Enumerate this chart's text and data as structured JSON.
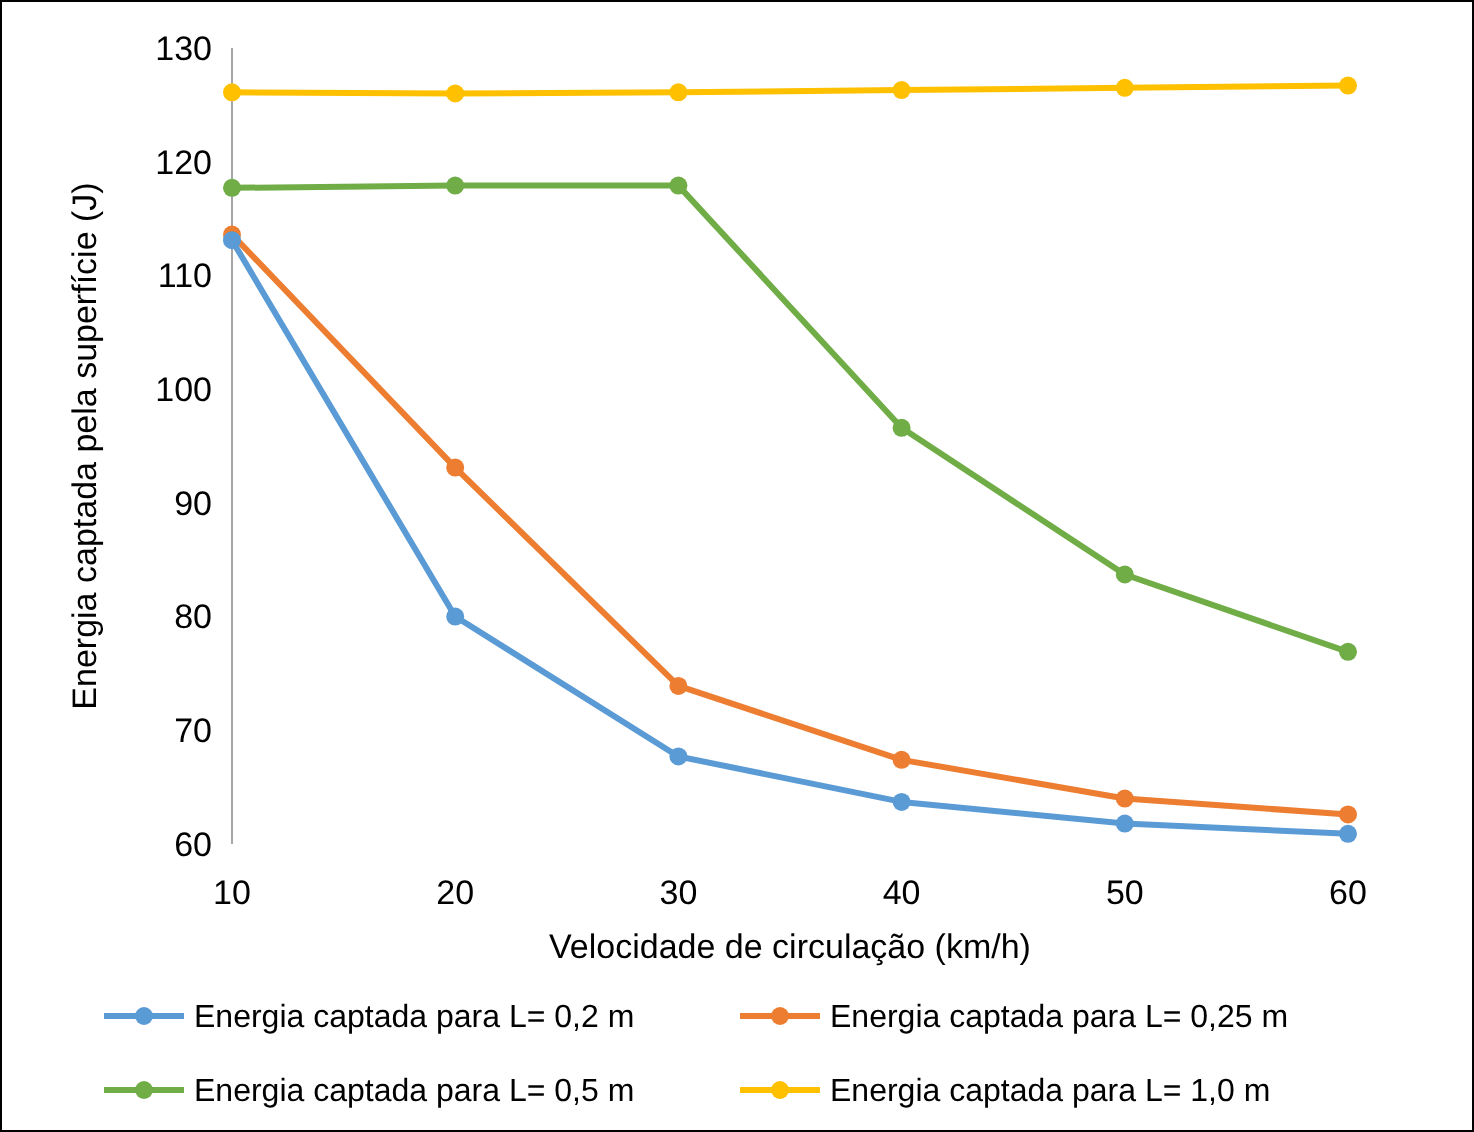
{
  "chart_data": {
    "type": "line",
    "xlabel": "Velocidade de circulação (km/h)",
    "ylabel": "Energia captada pela superfície (J)",
    "x": [
      10,
      20,
      30,
      40,
      50,
      60
    ],
    "xlim": [
      10,
      60
    ],
    "xticks": [
      10,
      20,
      30,
      40,
      50,
      60
    ],
    "ylim": [
      60,
      130
    ],
    "yticks": [
      60,
      70,
      80,
      90,
      100,
      110,
      120,
      130
    ],
    "grid": false,
    "legend": "bottom",
    "marker": "circle",
    "line_style": "solid",
    "series": [
      {
        "name": "Energia captada para L= 0,2 m",
        "color": "#5b9bd5",
        "values": [
          113.1,
          80,
          67.7,
          63.7,
          61.8,
          60.9
        ]
      },
      {
        "name": "Energia captada para L= 0,25 m",
        "color": "#ed7d31",
        "values": [
          113.6,
          93.1,
          73.9,
          67.4,
          64,
          62.6
        ]
      },
      {
        "name": "Energia captada para L= 0,5 m",
        "color": "#70ad47",
        "values": [
          117.7,
          117.9,
          117.9,
          96.6,
          83.7,
          76.9
        ]
      },
      {
        "name": "Energia captada para L= 1,0 m",
        "color": "#ffc000",
        "values": [
          126.1,
          126,
          126.1,
          126.3,
          126.5,
          126.7
        ]
      }
    ]
  }
}
